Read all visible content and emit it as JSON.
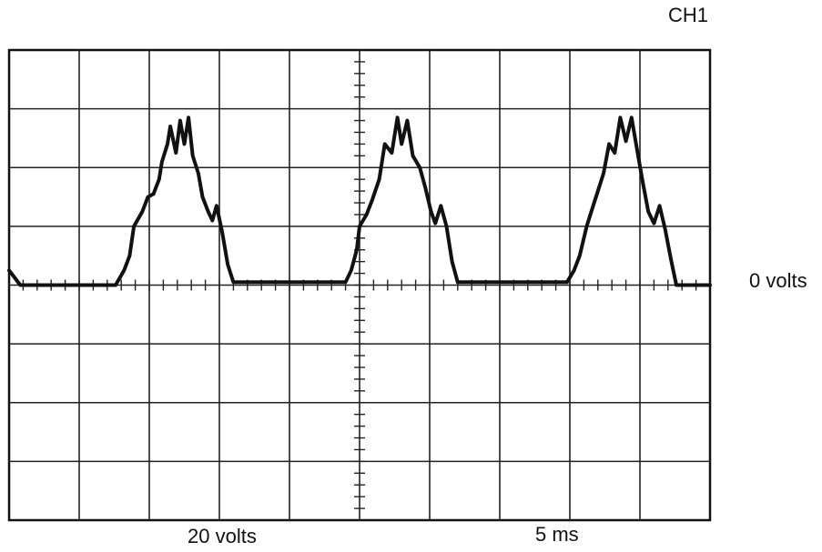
{
  "labels": {
    "channel": "CH1",
    "zero_reference": "0 volts",
    "volts_per_division": "20 volts",
    "time_per_division": "5 ms"
  },
  "colors": {
    "trace": "#111111",
    "grid": "#222222",
    "background": "#ffffff"
  },
  "scope": {
    "horizontal_divisions": 10,
    "vertical_divisions": 8,
    "zero_level_division_from_top": 4,
    "volts_per_division": 20,
    "ms_per_division": 5
  },
  "chart_data": {
    "type": "line",
    "title": "",
    "xlabel": "5 ms",
    "ylabel": "20 volts",
    "x_unit": "ms",
    "y_unit": "V",
    "xlim": [
      0,
      50
    ],
    "ylim": [
      0,
      80
    ],
    "grid": true,
    "series": [
      {
        "name": "",
        "points": [
          [
            0.0,
            5
          ],
          [
            0.8,
            0
          ],
          [
            7.6,
            0
          ],
          [
            8.2,
            5
          ],
          [
            8.6,
            10
          ],
          [
            8.9,
            20
          ],
          [
            9.5,
            25
          ],
          [
            9.9,
            30
          ],
          [
            10.3,
            31
          ],
          [
            10.7,
            36
          ],
          [
            10.9,
            42
          ],
          [
            11.3,
            48
          ],
          [
            11.5,
            54
          ],
          [
            11.9,
            45
          ],
          [
            12.2,
            56
          ],
          [
            12.5,
            48
          ],
          [
            12.8,
            57
          ],
          [
            13.1,
            44
          ],
          [
            13.5,
            38
          ],
          [
            13.8,
            30
          ],
          [
            14.2,
            25
          ],
          [
            14.5,
            22
          ],
          [
            14.8,
            27
          ],
          [
            15.2,
            18
          ],
          [
            15.6,
            7
          ],
          [
            16.0,
            1
          ],
          [
            24.0,
            1
          ],
          [
            24.4,
            5
          ],
          [
            24.8,
            12
          ],
          [
            25.0,
            20
          ],
          [
            25.5,
            24
          ],
          [
            25.9,
            29
          ],
          [
            26.4,
            36
          ],
          [
            26.8,
            48
          ],
          [
            27.3,
            45
          ],
          [
            27.7,
            57
          ],
          [
            28.0,
            48
          ],
          [
            28.4,
            56
          ],
          [
            28.8,
            44
          ],
          [
            29.3,
            40
          ],
          [
            29.7,
            33
          ],
          [
            30.1,
            25
          ],
          [
            30.4,
            21
          ],
          [
            30.8,
            27
          ],
          [
            31.2,
            20
          ],
          [
            31.6,
            8
          ],
          [
            32.0,
            1
          ],
          [
            39.8,
            1
          ],
          [
            40.3,
            5
          ],
          [
            40.7,
            10
          ],
          [
            41.2,
            20
          ],
          [
            41.6,
            26
          ],
          [
            42.0,
            32
          ],
          [
            42.4,
            38
          ],
          [
            42.8,
            48
          ],
          [
            43.2,
            45
          ],
          [
            43.6,
            57
          ],
          [
            44.0,
            49
          ],
          [
            44.4,
            57
          ],
          [
            44.8,
            46
          ],
          [
            45.2,
            35
          ],
          [
            45.6,
            25
          ],
          [
            46.0,
            21
          ],
          [
            46.4,
            27
          ],
          [
            46.8,
            19
          ],
          [
            47.2,
            9
          ],
          [
            47.6,
            0
          ],
          [
            50.0,
            0
          ]
        ]
      }
    ]
  }
}
